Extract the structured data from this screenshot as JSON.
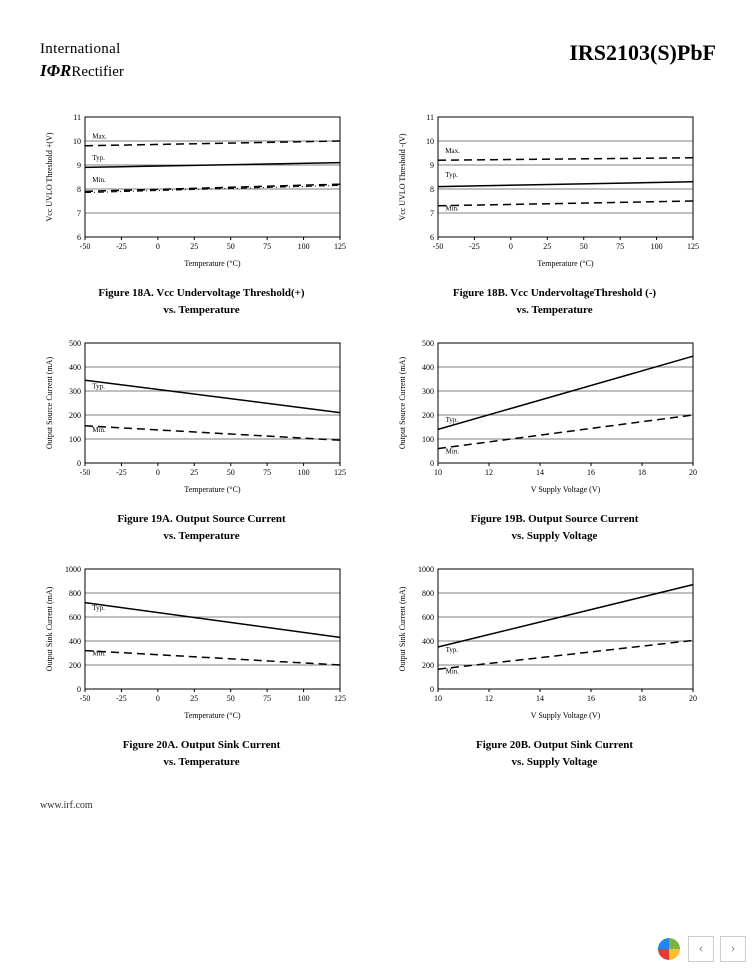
{
  "header": {
    "logo_top": "International",
    "logo_ir": "IΦR",
    "logo_bottom": "Rectifier",
    "part_number": "IRS2103(S)PbF"
  },
  "charts": [
    {
      "id": "18A",
      "title_line1": "Figure 18A.  Vcc Undervoltage Threshold(+)",
      "title_line2": "vs. Temperature",
      "xlabel": "Temperature (°C)",
      "ylabel": "Vcc UVLO Threshold +(V)",
      "xmin": -50,
      "xmax": 125,
      "xstep": 25,
      "ymin": 6,
      "ymax": 11,
      "ystep": 1,
      "series": [
        {
          "style": "dash",
          "points": [
            [
              -50,
              9.8
            ],
            [
              125,
              10.0
            ]
          ],
          "label": "Max.",
          "lx": -45,
          "ly": 10.1
        },
        {
          "style": "solid",
          "points": [
            [
              -50,
              8.9
            ],
            [
              125,
              9.1
            ]
          ],
          "label": "Typ.",
          "lx": -45,
          "ly": 9.2
        },
        {
          "style": "dash",
          "points": [
            [
              -50,
              7.9
            ],
            [
              125,
              8.2
            ]
          ],
          "label": "Min.",
          "lx": -45,
          "ly": 8.3
        },
        {
          "style": "dashdot",
          "points": [
            [
              -50,
              7.85
            ],
            [
              125,
              8.15
            ]
          ]
        }
      ]
    },
    {
      "id": "18B",
      "title_line1": "Figure 18B.  Vcc UndervoltageThreshold (-)",
      "title_line2": "vs. Temperature",
      "xlabel": "Temperature (°C)",
      "ylabel": "Vcc UVLO Threshold -(V)",
      "xmin": -50,
      "xmax": 125,
      "xstep": 25,
      "ymin": 6,
      "ymax": 11,
      "ystep": 1,
      "series": [
        {
          "style": "dash",
          "points": [
            [
              -50,
              9.2
            ],
            [
              125,
              9.3
            ]
          ],
          "label": "Max.",
          "lx": -45,
          "ly": 9.5
        },
        {
          "style": "solid",
          "points": [
            [
              -50,
              8.1
            ],
            [
              125,
              8.3
            ]
          ],
          "label": "Typ.",
          "lx": -45,
          "ly": 8.5
        },
        {
          "style": "dash",
          "points": [
            [
              -50,
              7.3
            ],
            [
              125,
              7.5
            ]
          ],
          "label": "Min.",
          "lx": -45,
          "ly": 7.1
        }
      ]
    },
    {
      "id": "19A",
      "title_line1": "Figure 19A.  Output Source Current",
      "title_line2": "vs. Temperature",
      "xlabel": "Temperature (°C)",
      "ylabel": "Output Source Current (mA)",
      "xmin": -50,
      "xmax": 125,
      "xstep": 25,
      "ymin": 0,
      "ymax": 500,
      "ystep": 100,
      "series": [
        {
          "style": "solid",
          "points": [
            [
              -50,
              345
            ],
            [
              125,
              210
            ]
          ],
          "label": "Typ.",
          "lx": -45,
          "ly": 310
        },
        {
          "style": "dash",
          "points": [
            [
              -50,
              155
            ],
            [
              125,
              95
            ]
          ],
          "label": "Min.",
          "lx": -45,
          "ly": 130
        }
      ]
    },
    {
      "id": "19B",
      "title_line1": "Figure 19B.  Output Source Current",
      "title_line2": "vs. Supply Voltage",
      "xlabel": "V       Supply Voltage (V)",
      "ylabel": "Output Source Current (mA)",
      "xmin": 10,
      "xmax": 20,
      "xstep": 2,
      "ymin": 0,
      "ymax": 500,
      "ystep": 100,
      "series": [
        {
          "style": "solid",
          "points": [
            [
              10,
              140
            ],
            [
              20,
              445
            ]
          ],
          "label": "Typ.",
          "lx": 10.3,
          "ly": 170
        },
        {
          "style": "dash",
          "points": [
            [
              10,
              60
            ],
            [
              20,
              200
            ]
          ],
          "label": "Min.",
          "lx": 10.3,
          "ly": 40
        }
      ]
    },
    {
      "id": "20A",
      "title_line1": "Figure 20A.  Output Sink Current",
      "title_line2": "vs. Temperature",
      "xlabel": "Temperature (°C)",
      "ylabel": "Output Sink Current (mA)",
      "xmin": -50,
      "xmax": 125,
      "xstep": 25,
      "ymin": 0,
      "ymax": 1000,
      "ystep": 200,
      "series": [
        {
          "style": "solid",
          "points": [
            [
              -50,
              720
            ],
            [
              125,
              430
            ]
          ],
          "label": "Typ.",
          "lx": -45,
          "ly": 660
        },
        {
          "style": "dash",
          "points": [
            [
              -50,
              320
            ],
            [
              125,
              200
            ]
          ],
          "label": "Min.",
          "lx": -45,
          "ly": 280
        }
      ]
    },
    {
      "id": "20B",
      "title_line1": "Figure 20B.  Output Sink Current",
      "title_line2": "vs. Supply Voltage",
      "xlabel": "V       Supply Voltage (V)",
      "ylabel": "Output Sink Current (mA)",
      "xmin": 10,
      "xmax": 20,
      "xstep": 2,
      "ymin": 0,
      "ymax": 1000,
      "ystep": 200,
      "series": [
        {
          "style": "solid",
          "points": [
            [
              10,
              350
            ],
            [
              20,
              870
            ]
          ],
          "label": "Typ.",
          "lx": 10.3,
          "ly": 310
        },
        {
          "style": "dash",
          "points": [
            [
              10,
              165
            ],
            [
              20,
              405
            ]
          ],
          "label": "Min.",
          "lx": 10.3,
          "ly": 130
        }
      ]
    }
  ],
  "footer": {
    "url": "www.irf.com"
  }
}
